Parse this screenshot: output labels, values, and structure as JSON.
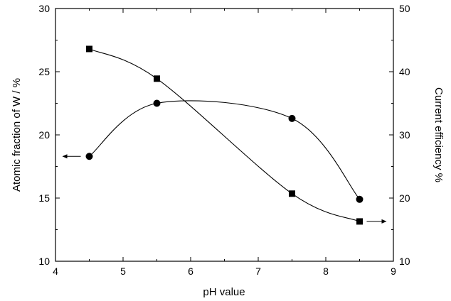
{
  "chart_data": {
    "type": "scatter",
    "title": "",
    "xlabel": "pH value",
    "ylabel_left": "Atomic fraction of W / %",
    "ylabel_right": "Current efficiency %",
    "xlim": [
      4,
      9
    ],
    "ylim_left": [
      10,
      30
    ],
    "ylim_right": [
      10,
      50
    ],
    "x_ticks": [
      4,
      5,
      6,
      7,
      8,
      9
    ],
    "y_ticks_left": [
      10,
      15,
      20,
      25,
      30
    ],
    "y_ticks_right": [
      10,
      20,
      30,
      40,
      50
    ],
    "grid": false,
    "series": [
      {
        "marker": "circle",
        "axis": "left",
        "x": [
          4.5,
          5.5,
          7.5,
          8.5
        ],
        "y": [
          18.3,
          22.5,
          21.3,
          14.9
        ]
      },
      {
        "marker": "square",
        "axis": "right",
        "x": [
          4.5,
          5.5,
          7.5,
          8.5
        ],
        "y": [
          43.6,
          38.9,
          20.7,
          16.3
        ]
      }
    ]
  }
}
